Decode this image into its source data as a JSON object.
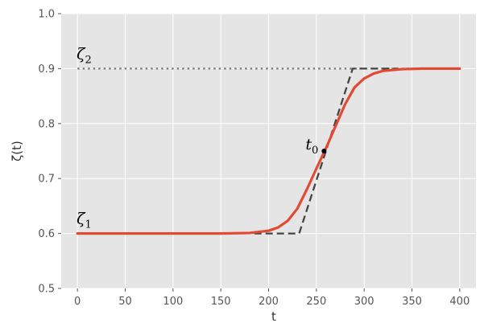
{
  "chart_data": {
    "type": "line",
    "xlabel": "t",
    "ylabel": "ζ(t)",
    "xlim": [
      -17,
      417
    ],
    "ylim": [
      0.5,
      1.0
    ],
    "x_ticks": [
      "0",
      "50",
      "100",
      "150",
      "200",
      "250",
      "300",
      "350",
      "400"
    ],
    "y_ticks": [
      "0.5",
      "0.6",
      "0.7",
      "0.8",
      "0.9",
      "1.0"
    ],
    "grid": true,
    "series": [
      {
        "style": "solid",
        "color": "#e24a33",
        "x": [
          0,
          100,
          150,
          180,
          200,
          210,
          220,
          230,
          240,
          250,
          260,
          270,
          280,
          290,
          300,
          310,
          320,
          340,
          360,
          400
        ],
        "y": [
          0.6,
          0.6,
          0.6,
          0.601,
          0.605,
          0.611,
          0.623,
          0.645,
          0.68,
          0.718,
          0.755,
          0.795,
          0.835,
          0.866,
          0.882,
          0.891,
          0.896,
          0.899,
          0.9,
          0.9
        ]
      },
      {
        "style": "dashed",
        "color": "#444444",
        "x": [
          185,
          232,
          288,
          335
        ],
        "y": [
          0.6,
          0.6,
          0.9,
          0.9
        ]
      },
      {
        "style": "dotted",
        "color": "#777777",
        "x": [
          0,
          400
        ],
        "y": [
          0.9,
          0.9
        ]
      }
    ],
    "point": {
      "label_main": "t",
      "label_sub": "0",
      "x": 258,
      "y": 0.75
    },
    "annotations": [
      {
        "label_main": "ζ",
        "label_sub": "2",
        "x": 0,
        "y": 0.9
      },
      {
        "label_main": "ζ",
        "label_sub": "1",
        "x": 0,
        "y": 0.6
      }
    ]
  }
}
